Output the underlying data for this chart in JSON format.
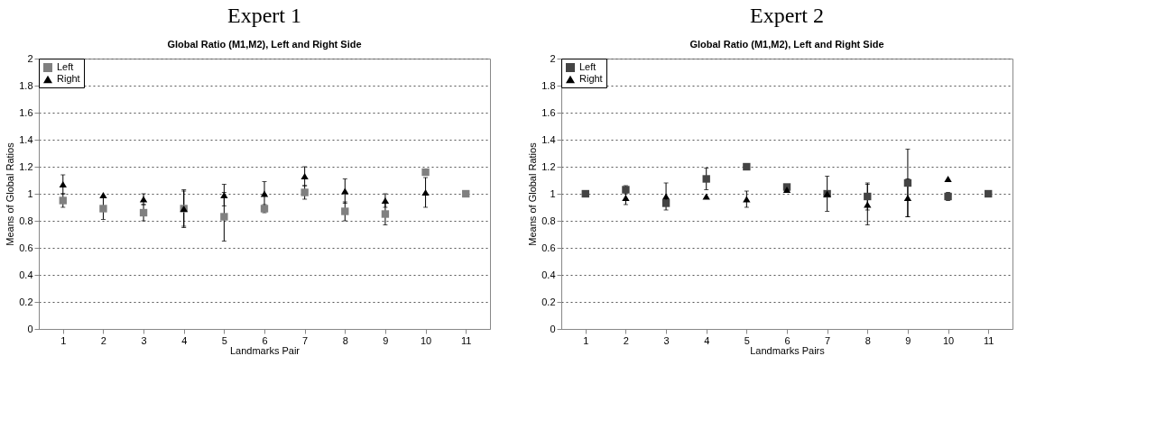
{
  "chart_data": [
    {
      "type": "scatter",
      "title": "Expert 1",
      "subtitle": "Global Ratio (M1,M2), Left and Right Side",
      "xlabel": "Landmarks Pair",
      "ylabel": "Means of Global Ratios",
      "categories": [
        "1",
        "2",
        "3",
        "4",
        "5",
        "6",
        "7",
        "8",
        "9",
        "10",
        "11"
      ],
      "ylim": [
        0,
        2
      ],
      "yticks": [
        0,
        0.2,
        0.4,
        0.6,
        0.8,
        1,
        1.2,
        1.4,
        1.6,
        1.8,
        2
      ],
      "grid": "y",
      "legend": "top left",
      "series": [
        {
          "name": "Left",
          "color": "#808080",
          "marker": "square",
          "values": [
            0.95,
            0.89,
            0.86,
            0.89,
            0.83,
            0.89,
            1.01,
            0.87,
            0.85,
            1.16,
            1.0
          ],
          "errors": [
            0.05,
            0.08,
            0.06,
            0.13,
            0.18,
            0.03,
            0.05,
            0.07,
            0.08,
            null,
            null
          ]
        },
        {
          "name": "Right",
          "color": "#000000",
          "marker": "triangle",
          "values": [
            1.07,
            0.99,
            0.96,
            0.89,
            0.99,
            1.0,
            1.13,
            1.02,
            0.95,
            1.01,
            null
          ],
          "errors": [
            0.07,
            null,
            0.04,
            0.14,
            0.08,
            0.09,
            0.07,
            0.09,
            0.05,
            0.11,
            null
          ]
        }
      ]
    },
    {
      "type": "scatter",
      "title": "Expert 2",
      "subtitle": "Global Ratio (M1,M2), Left and Right Side",
      "xlabel": "Landmarks Pairs",
      "ylabel": "Means of Global Ratios",
      "categories": [
        "1",
        "2",
        "3",
        "4",
        "5",
        "6",
        "7",
        "8",
        "9",
        "10",
        "11"
      ],
      "ylim": [
        0,
        2
      ],
      "yticks": [
        0,
        0.2,
        0.4,
        0.6,
        0.8,
        1,
        1.2,
        1.4,
        1.6,
        1.8,
        2
      ],
      "grid": "y",
      "legend": "top left",
      "series": [
        {
          "name": "Left",
          "color": "#444444",
          "marker": "square",
          "values": [
            1.0,
            1.03,
            0.93,
            1.11,
            1.2,
            1.05,
            1.0,
            0.98,
            1.08,
            0.98,
            1.0
          ],
          "errors": [
            null,
            0.03,
            0.02,
            0.08,
            0.02,
            null,
            0.13,
            0.1,
            0.25,
            0.03,
            null
          ]
        },
        {
          "name": "Right",
          "color": "#000000",
          "marker": "triangle",
          "values": [
            null,
            0.97,
            0.98,
            0.98,
            0.96,
            1.03,
            1.0,
            0.92,
            0.97,
            1.11,
            null
          ],
          "errors": [
            null,
            0.05,
            0.1,
            null,
            0.06,
            null,
            null,
            0.15,
            0.14,
            null,
            null
          ]
        }
      ]
    }
  ]
}
